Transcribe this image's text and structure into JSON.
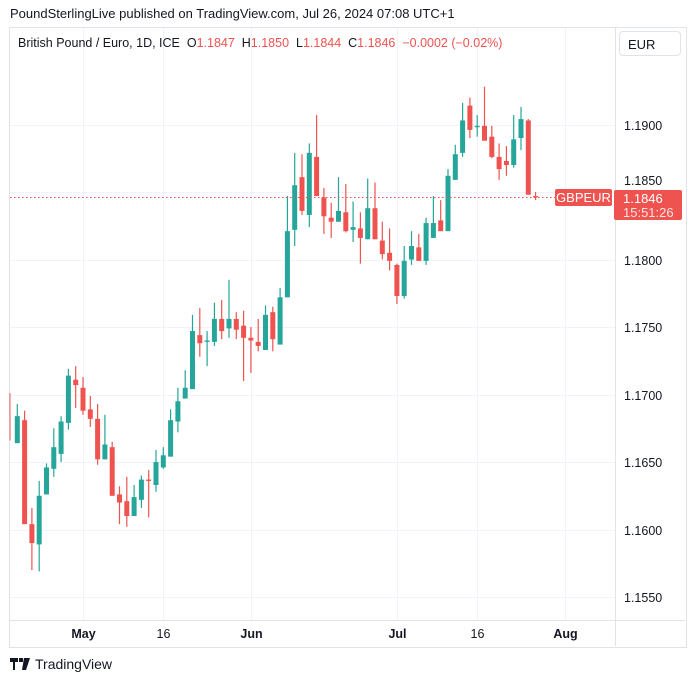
{
  "published": "PoundSterlingLive published on TradingView.com, Jul 26, 2024 07:08 UTC+1",
  "legend": {
    "symbol": "British Pound / Euro, 1D, ICE",
    "o_label": "O",
    "o": "1.1847",
    "h_label": "H",
    "h": "1.1850",
    "l_label": "L",
    "l": "1.1844",
    "c_label": "C",
    "c": "1.1846",
    "change": "−0.0002 (−0.02%)"
  },
  "currency_button": "EUR",
  "price_tag": {
    "symbol": "GBPEUR",
    "price": "1.1846",
    "countdown": "15:51:26"
  },
  "footer": {
    "brand": "TradingView"
  },
  "colors": {
    "up": "#26a69a",
    "down": "#ef5350",
    "grid": "#f0f3fa"
  },
  "chart_data": {
    "type": "candlestick",
    "title": "British Pound / Euro, 1D, ICE",
    "ylim": [
      1.1533,
      1.195
    ],
    "yticks": [
      "1.1550",
      "1.1600",
      "1.1650",
      "1.1700",
      "1.1750",
      "1.1800",
      "1.1850",
      "1.1900"
    ],
    "xticks": [
      {
        "date": "2024-05-01",
        "label": "May",
        "bold": true
      },
      {
        "date": "2024-05-16",
        "label": "16",
        "bold": false
      },
      {
        "date": "2024-06-03",
        "label": "Jun",
        "bold": true
      },
      {
        "date": "2024-07-01",
        "label": "Jul",
        "bold": true
      },
      {
        "date": "2024-07-16",
        "label": "16",
        "bold": false
      },
      {
        "date": "2024-08-01",
        "label": "Aug",
        "bold": true
      }
    ],
    "last_price": 1.1846,
    "columns": [
      "date",
      "open",
      "high",
      "low",
      "close"
    ],
    "candles": [
      [
        "2024-04-17",
        1.1701,
        1.1701,
        1.1666,
        1.1666
      ],
      [
        "2024-04-18",
        1.1664,
        1.1693,
        1.1664,
        1.1684
      ],
      [
        "2024-04-19",
        1.1681,
        1.1688,
        1.1604,
        1.1604
      ],
      [
        "2024-04-22",
        1.1604,
        1.1616,
        1.157,
        1.159
      ],
      [
        "2024-04-23",
        1.1589,
        1.1636,
        1.1569,
        1.1625
      ],
      [
        "2024-04-24",
        1.1626,
        1.1649,
        1.1626,
        1.1646
      ],
      [
        "2024-04-25",
        1.1645,
        1.1675,
        1.1639,
        1.1661
      ],
      [
        "2024-04-26",
        1.1656,
        1.1684,
        1.165,
        1.168
      ],
      [
        "2024-04-29",
        1.1679,
        1.1719,
        1.1674,
        1.1714
      ],
      [
        "2024-04-30",
        1.1711,
        1.1721,
        1.169,
        1.1707
      ],
      [
        "2024-05-01",
        1.1705,
        1.1713,
        1.1685,
        1.1688
      ],
      [
        "2024-05-02",
        1.1689,
        1.1699,
        1.1676,
        1.1682
      ],
      [
        "2024-05-03",
        1.1682,
        1.1693,
        1.1648,
        1.1652
      ],
      [
        "2024-05-06",
        1.1652,
        1.1685,
        1.1652,
        1.1663
      ],
      [
        "2024-05-07",
        1.1661,
        1.1665,
        1.1625,
        1.1625
      ],
      [
        "2024-05-08",
        1.1626,
        1.1632,
        1.1604,
        1.162
      ],
      [
        "2024-05-09",
        1.1621,
        1.1639,
        1.1602,
        1.161
      ],
      [
        "2024-05-10",
        1.161,
        1.1633,
        1.161,
        1.1624
      ],
      [
        "2024-05-13",
        1.1622,
        1.164,
        1.1616,
        1.1637
      ],
      [
        "2024-05-14",
        1.1637,
        1.1644,
        1.1609,
        1.1636
      ],
      [
        "2024-05-15",
        1.1633,
        1.1659,
        1.1628,
        1.165
      ],
      [
        "2024-05-16",
        1.1646,
        1.1661,
        1.1645,
        1.1655
      ],
      [
        "2024-05-17",
        1.1654,
        1.1689,
        1.1654,
        1.1681
      ],
      [
        "2024-05-20",
        1.168,
        1.1705,
        1.1672,
        1.1695
      ],
      [
        "2024-05-21",
        1.1697,
        1.1718,
        1.1697,
        1.1705
      ],
      [
        "2024-05-22",
        1.1704,
        1.1759,
        1.1704,
        1.1747
      ],
      [
        "2024-05-23",
        1.1744,
        1.1764,
        1.1728,
        1.1738
      ],
      [
        "2024-05-24",
        1.1739,
        1.1747,
        1.1721,
        1.174
      ],
      [
        "2024-05-27",
        1.1739,
        1.1768,
        1.1736,
        1.1756
      ],
      [
        "2024-05-28",
        1.1756,
        1.177,
        1.1741,
        1.1747
      ],
      [
        "2024-05-29",
        1.1749,
        1.1785,
        1.1742,
        1.1756
      ],
      [
        "2024-05-30",
        1.1756,
        1.1761,
        1.1741,
        1.1748
      ],
      [
        "2024-05-31",
        1.1751,
        1.1762,
        1.171,
        1.1742
      ],
      [
        "2024-06-03",
        1.1742,
        1.175,
        1.1716,
        1.174
      ],
      [
        "2024-06-04",
        1.1739,
        1.1756,
        1.1732,
        1.1736
      ],
      [
        "2024-06-05",
        1.1733,
        1.1766,
        1.1733,
        1.1759
      ],
      [
        "2024-06-06",
        1.1761,
        1.1765,
        1.1732,
        1.1741
      ],
      [
        "2024-06-07",
        1.1737,
        1.1779,
        1.1737,
        1.1772
      ],
      [
        "2024-06-10",
        1.1772,
        1.1847,
        1.1772,
        1.1821
      ],
      [
        "2024-06-11",
        1.1822,
        1.1879,
        1.181,
        1.1855
      ],
      [
        "2024-06-12",
        1.1861,
        1.1878,
        1.1833,
        1.1836
      ],
      [
        "2024-06-13",
        1.1833,
        1.1886,
        1.1824,
        1.1879
      ],
      [
        "2024-06-14",
        1.1876,
        1.1907,
        1.1847,
        1.1847
      ],
      [
        "2024-06-17",
        1.1846,
        1.1853,
        1.1819,
        1.1832
      ],
      [
        "2024-06-18",
        1.1831,
        1.1842,
        1.1816,
        1.1828
      ],
      [
        "2024-06-19",
        1.1828,
        1.1861,
        1.1828,
        1.1836
      ],
      [
        "2024-06-20",
        1.1835,
        1.1856,
        1.182,
        1.1821
      ],
      [
        "2024-06-21",
        1.1822,
        1.1843,
        1.1813,
        1.1824
      ],
      [
        "2024-06-24",
        1.1823,
        1.1835,
        1.1797,
        1.1816
      ],
      [
        "2024-06-25",
        1.1815,
        1.186,
        1.1815,
        1.1838
      ],
      [
        "2024-06-26",
        1.1838,
        1.1857,
        1.1815,
        1.1815
      ],
      [
        "2024-06-27",
        1.1814,
        1.1828,
        1.18,
        1.1804
      ],
      [
        "2024-06-28",
        1.1805,
        1.1823,
        1.1792,
        1.1799
      ],
      [
        "2024-07-01",
        1.1796,
        1.1797,
        1.1767,
        1.1773
      ],
      [
        "2024-07-02",
        1.1773,
        1.181,
        1.1771,
        1.1799
      ],
      [
        "2024-07-03",
        1.18,
        1.1821,
        1.1796,
        1.181
      ],
      [
        "2024-07-04",
        1.1809,
        1.1819,
        1.1799,
        1.1799
      ],
      [
        "2024-07-05",
        1.1799,
        1.1831,
        1.1796,
        1.1827
      ],
      [
        "2024-07-08",
        1.1816,
        1.1847,
        1.1816,
        1.1827
      ],
      [
        "2024-07-09",
        1.1829,
        1.1844,
        1.1821,
        1.1821
      ],
      [
        "2024-07-10",
        1.1821,
        1.1867,
        1.1821,
        1.1862
      ],
      [
        "2024-07-11",
        1.1859,
        1.1885,
        1.1859,
        1.1878
      ],
      [
        "2024-07-12",
        1.1879,
        1.1916,
        1.1876,
        1.1903
      ],
      [
        "2024-07-15",
        1.1914,
        1.192,
        1.189,
        1.1896
      ],
      [
        "2024-07-16",
        1.1898,
        1.1907,
        1.1891,
        1.1899
      ],
      [
        "2024-07-17",
        1.1899,
        1.1928,
        1.1888,
        1.1888
      ],
      [
        "2024-07-18",
        1.1891,
        1.1899,
        1.1875,
        1.1876
      ],
      [
        "2024-07-19",
        1.1876,
        1.1886,
        1.1859,
        1.1867
      ],
      [
        "2024-07-22",
        1.1873,
        1.1884,
        1.1862,
        1.187
      ],
      [
        "2024-07-23",
        1.187,
        1.1907,
        1.1868,
        1.1889
      ],
      [
        "2024-07-24",
        1.189,
        1.1913,
        1.1881,
        1.1904
      ],
      [
        "2024-07-25",
        1.1903,
        1.1904,
        1.1848,
        1.1848
      ],
      [
        "2024-07-26",
        1.1847,
        1.185,
        1.1844,
        1.1846
      ]
    ]
  }
}
